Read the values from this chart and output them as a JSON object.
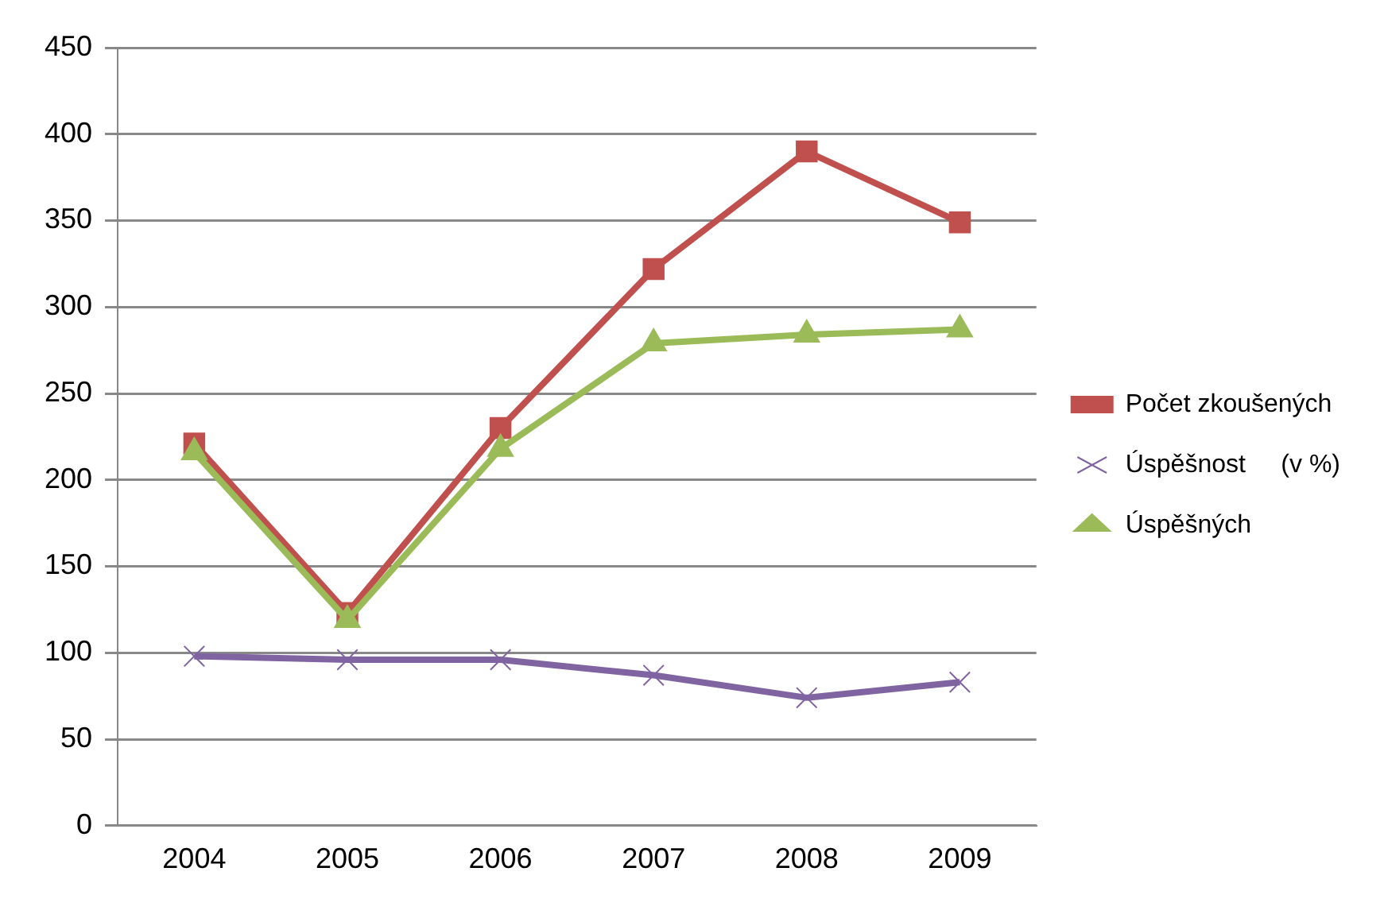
{
  "chart_data": {
    "type": "line",
    "categories": [
      "2004",
      "2005",
      "2006",
      "2007",
      "2008",
      "2009"
    ],
    "series": [
      {
        "name": "Počet zkoušených",
        "color": "#c0504d",
        "marker": "square",
        "values": [
          221,
          123,
          230,
          322,
          390,
          349
        ]
      },
      {
        "name": "Úspěšnost     (v %)",
        "color": "#8064a2",
        "marker": "cross",
        "values": [
          98,
          96,
          96,
          87,
          74,
          83
        ]
      },
      {
        "name": "Úspěšných",
        "color": "#9bbb59",
        "marker": "triangle",
        "values": [
          216,
          119,
          218,
          279,
          284,
          287
        ]
      }
    ],
    "ylim": [
      0,
      450
    ],
    "yticks": [
      0,
      50,
      100,
      150,
      200,
      250,
      300,
      350,
      400,
      450
    ],
    "grid": "y",
    "legend": "right"
  }
}
